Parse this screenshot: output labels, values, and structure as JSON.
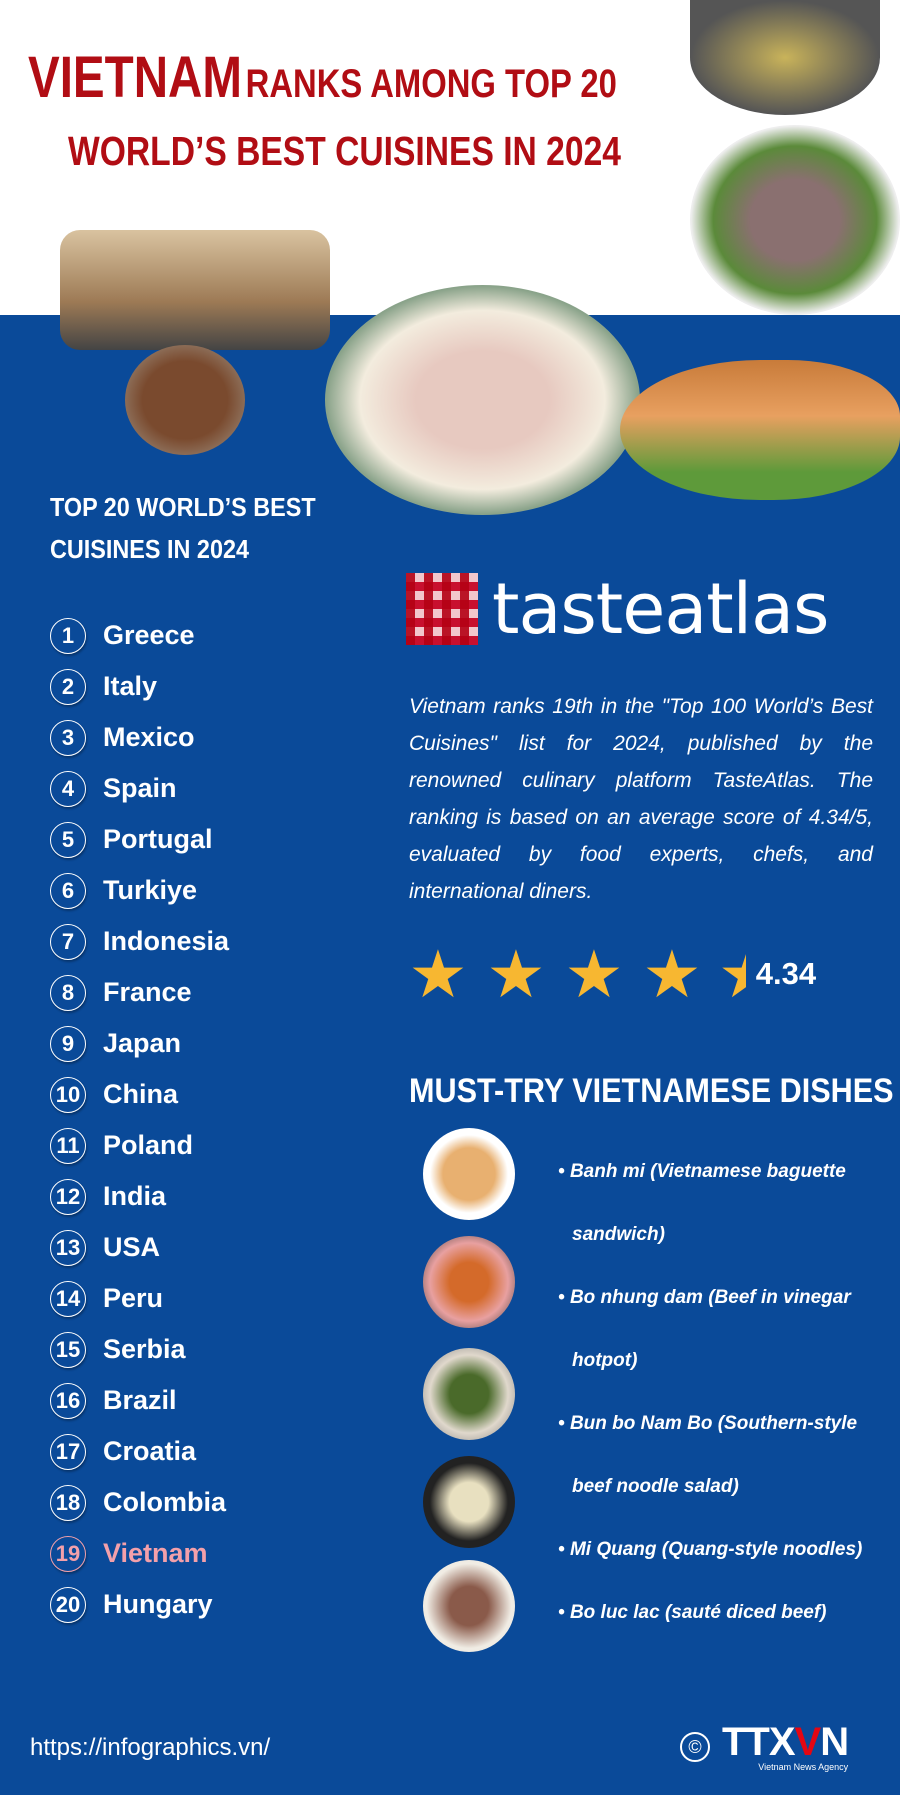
{
  "title": {
    "line1_highlight": "VIETNAM",
    "line1_rest": "RANKS AMONG TOP 20",
    "line2": "WORLD’S BEST CUISINES IN 2024"
  },
  "ranking": {
    "heading_line1": "TOP 20 WORLD’S BEST",
    "heading_line2": "CUISINES IN 2024",
    "highlight_color": "#f3a0aa",
    "items": [
      {
        "rank": "1",
        "country": "Greece"
      },
      {
        "rank": "2",
        "country": "Italy"
      },
      {
        "rank": "3",
        "country": "Mexico"
      },
      {
        "rank": "4",
        "country": "Spain"
      },
      {
        "rank": "5",
        "country": "Portugal"
      },
      {
        "rank": "6",
        "country": "Turkiye"
      },
      {
        "rank": "7",
        "country": "Indonesia"
      },
      {
        "rank": "8",
        "country": "France"
      },
      {
        "rank": "9",
        "country": "Japan"
      },
      {
        "rank": "10",
        "country": "China"
      },
      {
        "rank": "11",
        "country": "Poland"
      },
      {
        "rank": "12",
        "country": "India"
      },
      {
        "rank": "13",
        "country": "USA"
      },
      {
        "rank": "14",
        "country": "Peru"
      },
      {
        "rank": "15",
        "country": "Serbia"
      },
      {
        "rank": "16",
        "country": "Brazil"
      },
      {
        "rank": "17",
        "country": "Croatia"
      },
      {
        "rank": "18",
        "country": "Colombia"
      },
      {
        "rank": "19",
        "country": "Vietnam"
      },
      {
        "rank": "20",
        "country": "Hungary"
      }
    ]
  },
  "tasteatlas": {
    "logo_text": "tasteatlas",
    "description": "Vietnam ranks 19th in the \"Top 100 World’s Best Cuisines\" list for 2024, published by the renowned culinary platform TasteAtlas. The ranking is based on an average score of 4.34/5, evaluated by food experts, chefs, and international diners.",
    "rating": 4.34,
    "rating_max": 5,
    "score_label": "4.34"
  },
  "dishes": {
    "heading": "MUST-TRY VIETNAMESE DISHES",
    "items": [
      "Banh mi (Vietnamese baguette sandwich)",
      "Bo nhung dam (Beef in vinegar hotpot)",
      "Bun bo Nam Bo (Southern-style beef noodle salad)",
      "Mi Quang (Quang-style noodles)",
      "Bo luc lac (sauté diced beef)"
    ]
  },
  "footer": {
    "url": "https://infographics.vn/",
    "copyright": "©",
    "brand": "TTXVN",
    "agency": "Vietnam News Agency"
  },
  "colors": {
    "background_blue": "#0a4a99",
    "title_red": "#b10d14",
    "star": "#f7b731"
  }
}
